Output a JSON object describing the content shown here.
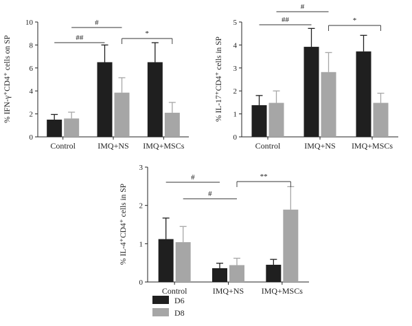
{
  "legend": [
    {
      "name": "D6",
      "color": "#1f1f1f"
    },
    {
      "name": "D8",
      "color": "#a6a6a6"
    }
  ],
  "chart_data": [
    {
      "type": "bar",
      "ylabel": "% IFN-γ⁺CD4⁺ cells on SP",
      "categories": [
        "Control",
        "IMQ+NS",
        "IMQ+MSCs"
      ],
      "ylim": [
        0,
        10
      ],
      "yticks": [
        0,
        2,
        4,
        6,
        8,
        10
      ],
      "series": [
        {
          "name": "D6",
          "values": [
            1.5,
            6.5,
            6.5
          ],
          "errors": [
            0.45,
            1.5,
            1.7
          ]
        },
        {
          "name": "D8",
          "values": [
            1.6,
            3.85,
            2.1
          ],
          "errors": [
            0.55,
            1.3,
            0.9
          ]
        }
      ],
      "significance": [
        {
          "from": [
            0,
            0
          ],
          "to": [
            1,
            0
          ],
          "label": "##"
        },
        {
          "from": [
            0,
            1
          ],
          "to": [
            1,
            1
          ],
          "label": "#"
        },
        {
          "from": [
            1,
            1
          ],
          "to": [
            2,
            1
          ],
          "label": "*"
        }
      ]
    },
    {
      "type": "bar",
      "ylabel": "% IL-17⁺CD4⁺ cells in SP",
      "categories": [
        "Control",
        "IMQ+NS",
        "IMQ+MSCs"
      ],
      "ylim": [
        0,
        5
      ],
      "yticks": [
        0,
        1,
        2,
        3,
        4,
        5
      ],
      "series": [
        {
          "name": "D6",
          "values": [
            1.38,
            3.92,
            3.72
          ],
          "errors": [
            0.42,
            0.8,
            0.7
          ]
        },
        {
          "name": "D8",
          "values": [
            1.48,
            2.82,
            1.48
          ],
          "errors": [
            0.52,
            0.85,
            0.42
          ]
        }
      ],
      "significance": [
        {
          "from": [
            0,
            0
          ],
          "to": [
            1,
            0
          ],
          "label": "##"
        },
        {
          "from": [
            0,
            1
          ],
          "to": [
            1,
            1
          ],
          "label": "#"
        },
        {
          "from": [
            1,
            1
          ],
          "to": [
            2,
            1
          ],
          "label": "*"
        }
      ]
    },
    {
      "type": "bar",
      "ylabel": "% IL-4⁺CD4⁺ cells in SP",
      "categories": [
        "Control",
        "IMQ+NS",
        "IMQ+MSCs"
      ],
      "ylim": [
        0,
        3
      ],
      "yticks": [
        0,
        1,
        2,
        3
      ],
      "series": [
        {
          "name": "D6",
          "values": [
            1.12,
            0.36,
            0.45
          ],
          "errors": [
            0.55,
            0.13,
            0.14
          ]
        },
        {
          "name": "D8",
          "values": [
            1.04,
            0.44,
            1.89
          ],
          "errors": [
            0.41,
            0.18,
            0.6
          ]
        }
      ],
      "significance": [
        {
          "from": [
            0,
            0
          ],
          "to": [
            1,
            0
          ],
          "label": "#"
        },
        {
          "from": [
            0,
            1
          ],
          "to": [
            1,
            1
          ],
          "label": "#"
        },
        {
          "from": [
            1,
            1
          ],
          "to": [
            2,
            1
          ],
          "label": "**"
        }
      ]
    }
  ]
}
